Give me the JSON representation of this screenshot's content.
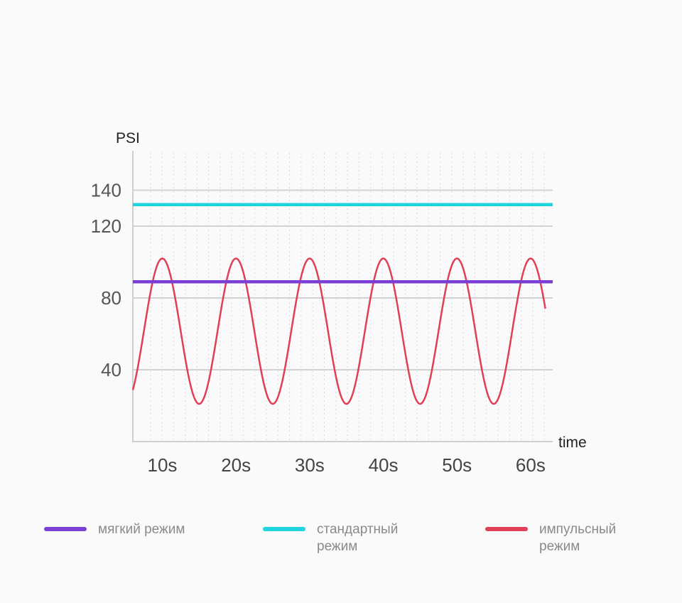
{
  "chart_data": {
    "type": "line",
    "ylabel": "PSI",
    "xlabel": "time",
    "xlim": [
      6,
      63
    ],
    "ylim": [
      0,
      162
    ],
    "y_ticks": [
      40,
      80,
      120,
      140
    ],
    "x_ticks": [
      {
        "value": 10,
        "label": "10s"
      },
      {
        "value": 20,
        "label": "20s"
      },
      {
        "value": 30,
        "label": "30s"
      },
      {
        "value": 40,
        "label": "40s"
      },
      {
        "value": 50,
        "label": "50s"
      },
      {
        "value": 60,
        "label": "60s"
      }
    ],
    "grid": true,
    "legend_position": "bottom",
    "series": [
      {
        "name": "мягкий режим",
        "kind": "constant",
        "value": 89,
        "x_range": [
          6,
          63
        ],
        "color": "#7b3fd6"
      },
      {
        "name": "стандартный режим",
        "kind": "constant",
        "value": 132,
        "x_range": [
          6,
          63
        ],
        "color": "#1fd3dc"
      },
      {
        "name": "импульсный режим",
        "kind": "sine",
        "min": 21,
        "max": 102,
        "period": 10,
        "first_peak": 10,
        "x_range": [
          6,
          62
        ],
        "color": "#e04055"
      }
    ]
  }
}
